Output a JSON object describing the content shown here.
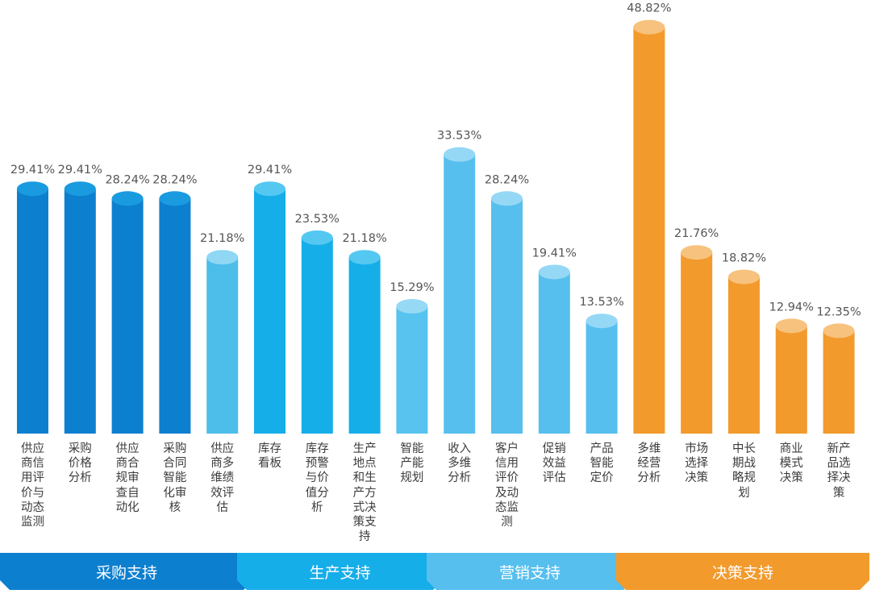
{
  "chart_data": {
    "type": "bar",
    "title": "",
    "xlabel": "",
    "ylabel": "",
    "ylim": [
      0,
      50
    ],
    "categories": [
      "供应商信用评价与动态监测",
      "采购价格分析",
      "供应商合规审查自动化",
      "采购合同智能化审核",
      "供应商多维绩效评估",
      "库存看板",
      "库存预警与价值分析",
      "生产地点和生产方式决策支持",
      "智能产能规划",
      "收入多维分析",
      "客户信用评价及动态监测",
      "促销效益评估",
      "产品智能定价",
      "多维经营分析",
      "市场选择决策",
      "中长期战略规划",
      "商业模式决策",
      "新产品选择决策"
    ],
    "values": [
      29.41,
      29.41,
      28.24,
      28.24,
      21.18,
      29.41,
      23.53,
      21.18,
      15.29,
      33.53,
      28.24,
      19.41,
      13.53,
      48.82,
      21.76,
      18.82,
      12.94,
      12.35
    ],
    "value_labels": [
      "29.41%",
      "29.41%",
      "28.24%",
      "28.24%",
      "21.18%",
      "29.41%",
      "23.53%",
      "21.18%",
      "15.29%",
      "33.53%",
      "28.24%",
      "19.41%",
      "13.53%",
      "48.82%",
      "21.76%",
      "18.82%",
      "12.94%",
      "12.35%"
    ],
    "groups": [
      {
        "name": "采购支持",
        "start": 0,
        "count": 5
      },
      {
        "name": "生产支持",
        "start": 5,
        "count": 4
      },
      {
        "name": "营销支持",
        "start": 9,
        "count": 4
      },
      {
        "name": "决策支持",
        "start": 13,
        "count": 5
      }
    ]
  },
  "colors": {
    "bars": [
      "#0d7fcf",
      "#0d7fcf",
      "#0d7fcf",
      "#0d7fcf",
      "#4dbde9",
      "#16aee9",
      "#16aee9",
      "#16aee9",
      "#58c3ee",
      "#56bfee",
      "#56bfee",
      "#56bfee",
      "#56bfee",
      "#f29a2c",
      "#f29a2c",
      "#f29a2c",
      "#f29a2c",
      "#f29a2c"
    ],
    "bar_tops": [
      "#1a9be0",
      "#1a9be0",
      "#1a9be0",
      "#1a9be0",
      "#8fd7f3",
      "#55c8f2",
      "#55c8f2",
      "#55c8f2",
      "#96d9f5",
      "#95d8f6",
      "#95d8f6",
      "#95d8f6",
      "#95d8f6",
      "#f7c27d",
      "#f7c27d",
      "#f7c27d",
      "#f7c27d",
      "#f7c27d"
    ],
    "groups": [
      "#0d7fcf",
      "#16aee9",
      "#56bfee",
      "#f29a2c"
    ],
    "value_text": "#555555"
  }
}
